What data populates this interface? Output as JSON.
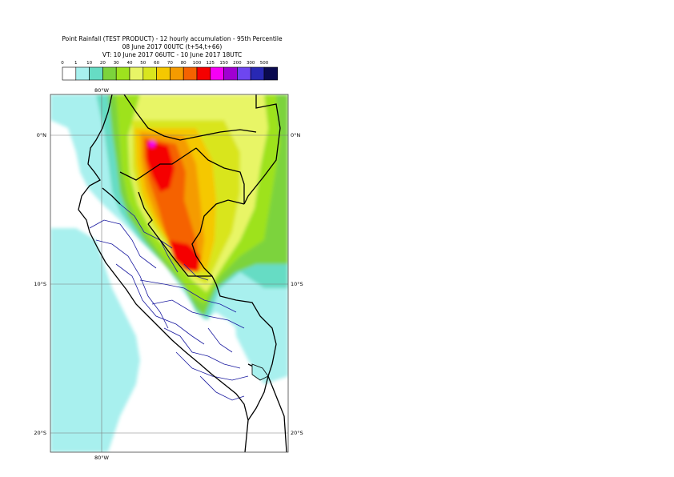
{
  "title": {
    "line1": "Point Rainfall (TEST PRODUCT) - 12 hourly accumulation - 95th Percentile",
    "line2": "08 June 2017 00UTC (t+54,t+66)",
    "line3": "VT: 10 June 2017 06UTC - 10 June 2017 18UTC"
  },
  "legend": {
    "thresholds": [
      "0",
      "1",
      "10",
      "20",
      "30",
      "40",
      "50",
      "60",
      "70",
      "80",
      "100",
      "125",
      "150",
      "200",
      "300",
      "500"
    ],
    "colors": [
      "#ffffff",
      "#a8f0ee",
      "#66dcc4",
      "#7cd33c",
      "#9ee21e",
      "#e8f566",
      "#d9e51e",
      "#f5c800",
      "#f59b00",
      "#f56200",
      "#f50000",
      "#f500f5",
      "#a000d2",
      "#6e46f0",
      "#2828b4",
      "#0a0a50"
    ]
  },
  "map": {
    "lon_label_top": "80°W",
    "lon_label_bottom": "80°W",
    "lat_labels_left": [
      "0°N",
      "10°S",
      "20°S"
    ],
    "lat_labels_right": [
      "0°N",
      "10°S",
      "20°S"
    ]
  }
}
